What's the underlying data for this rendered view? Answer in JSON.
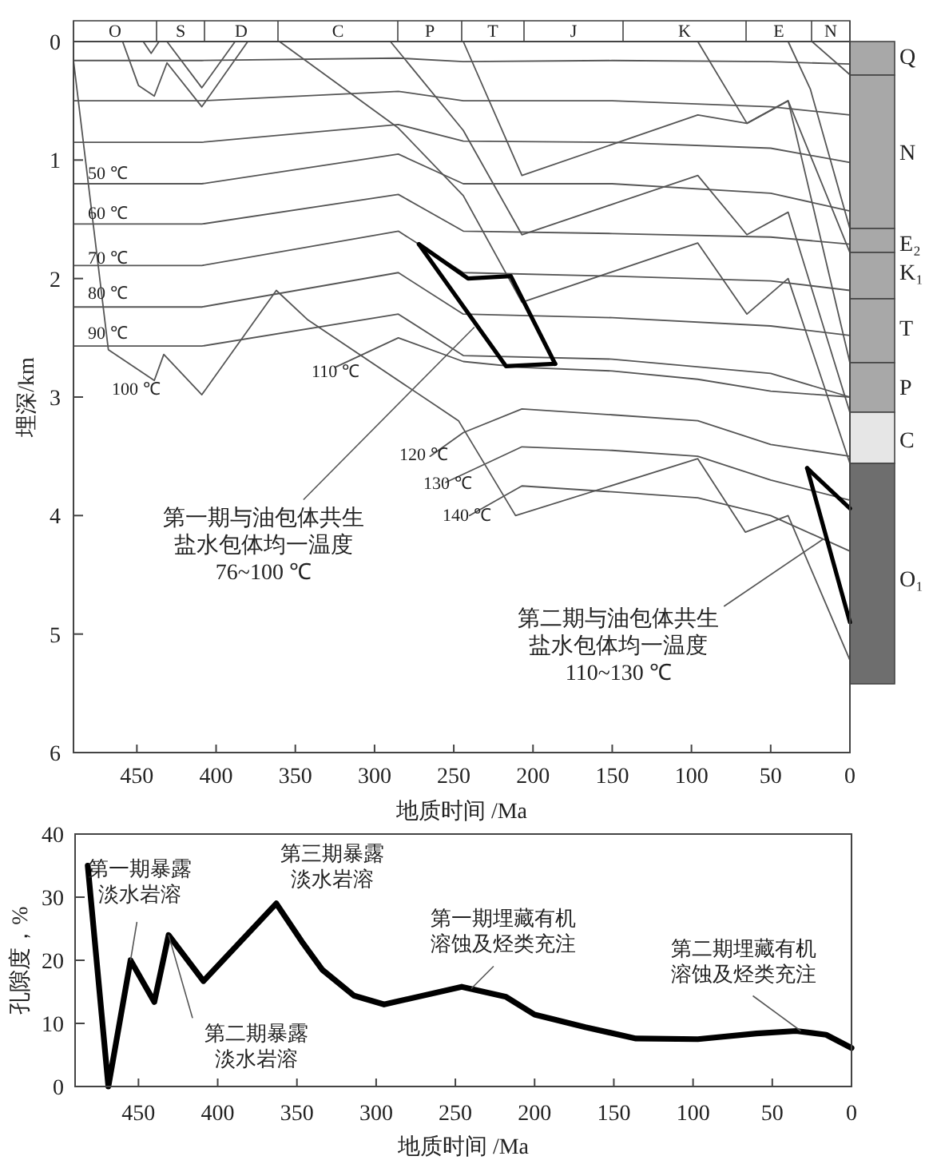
{
  "chart_data": [
    {
      "type": "line",
      "xlabel": "地质时间 /Ma",
      "ylabel": "埋深/km",
      "xlim": [
        490,
        0
      ],
      "ylim": [
        6,
        0
      ],
      "xticks": [
        450,
        400,
        350,
        300,
        250,
        200,
        150,
        100,
        50,
        0
      ],
      "yticks": [
        0,
        1,
        2,
        3,
        4,
        5,
        6
      ],
      "series": [
        {
          "color": "#555555",
          "x": [
            490,
            409,
            285,
            244,
            150,
            50,
            0
          ],
          "values": [
            0.16,
            0.16,
            0.14,
            0.17,
            0.16,
            0.17,
            0.19
          ]
        },
        {
          "color": "#555555",
          "x": [
            490,
            409,
            285,
            244,
            150,
            50,
            0
          ],
          "values": [
            0.5,
            0.5,
            0.42,
            0.5,
            0.5,
            0.55,
            0.62
          ]
        },
        {
          "color": "#555555",
          "x": [
            490,
            409,
            285,
            244,
            150,
            50,
            0
          ],
          "values": [
            0.85,
            0.85,
            0.7,
            0.84,
            0.85,
            0.9,
            1.02
          ]
        },
        {
          "color": "#555555",
          "x": [
            490,
            409,
            285,
            244,
            150,
            50,
            0
          ],
          "values": [
            1.2,
            1.2,
            0.95,
            1.2,
            1.2,
            1.28,
            1.43
          ]
        },
        {
          "color": "#555555",
          "x": [
            490,
            409,
            285,
            244,
            150,
            50,
            0
          ],
          "values": [
            1.54,
            1.54,
            1.29,
            1.6,
            1.62,
            1.65,
            1.71
          ]
        },
        {
          "color": "#555555",
          "x": [
            490,
            409,
            285,
            244,
            150,
            50,
            0
          ],
          "values": [
            1.89,
            1.89,
            1.6,
            1.95,
            1.98,
            2.02,
            2.1
          ]
        },
        {
          "color": "#555555",
          "x": [
            490,
            409,
            285,
            244,
            150,
            50,
            0
          ],
          "values": [
            2.24,
            2.24,
            1.95,
            2.3,
            2.33,
            2.4,
            2.48
          ]
        },
        {
          "color": "#555555",
          "x": [
            490,
            409,
            285,
            244,
            150,
            50,
            0
          ],
          "values": [
            2.57,
            2.57,
            2.3,
            2.65,
            2.68,
            2.8,
            3.0
          ]
        },
        {
          "color": "#555555",
          "x": [
            325,
            285,
            244,
            207,
            150,
            96,
            50,
            0
          ],
          "values": [
            2.75,
            2.5,
            2.7,
            2.75,
            2.78,
            2.85,
            2.95,
            3.0
          ]
        },
        {
          "color": "#555555",
          "x": [
            265,
            244,
            207,
            150,
            96,
            50,
            0
          ],
          "values": [
            3.5,
            3.3,
            3.1,
            3.15,
            3.2,
            3.4,
            3.5
          ]
        },
        {
          "color": "#555555",
          "x": [
            255,
            207,
            150,
            96,
            50,
            0
          ],
          "values": [
            3.72,
            3.42,
            3.45,
            3.5,
            3.7,
            3.87
          ]
        },
        {
          "color": "#555555",
          "x": [
            240,
            207,
            150,
            96,
            50,
            0
          ],
          "values": [
            4.0,
            3.75,
            3.8,
            3.85,
            4.0,
            4.3
          ]
        },
        {
          "color": "#555555",
          "x": [
            490,
            468,
            439,
            433,
            409,
            362,
            342,
            247,
            211,
            96,
            66,
            39,
            0
          ],
          "values": [
            0.16,
            2.6,
            2.86,
            2.64,
            2.98,
            2.1,
            2.35,
            3.2,
            4.0,
            3.52,
            4.14,
            4.0,
            5.22
          ]
        },
        {
          "color": "#555555",
          "x": [
            459,
            449,
            439,
            431,
            409,
            380
          ],
          "values": [
            0,
            0.37,
            0.46,
            0.18,
            0.55,
            0
          ]
        },
        {
          "color": "#555555",
          "x": [
            431,
            409,
            388
          ],
          "values": [
            0,
            0.39,
            0
          ]
        },
        {
          "color": "#555555",
          "x": [
            446,
            441,
            436
          ],
          "values": [
            0,
            0.1,
            0
          ]
        },
        {
          "color": "#555555",
          "x": [
            360,
            285,
            244,
            207,
            96,
            65,
            39,
            0
          ],
          "values": [
            0,
            0.73,
            1.3,
            2.2,
            1.7,
            2.3,
            2.0,
            3.56
          ]
        },
        {
          "color": "#555555",
          "x": [
            290,
            244,
            207,
            96,
            65,
            39,
            0
          ],
          "values": [
            0,
            0.75,
            1.63,
            1.13,
            1.63,
            1.44,
            3.13
          ]
        },
        {
          "color": "#555555",
          "x": [
            244,
            207,
            96,
            65,
            39,
            0
          ],
          "values": [
            0,
            1.13,
            0.62,
            0.69,
            0.5,
            2.71
          ]
        },
        {
          "color": "#555555",
          "x": [
            96,
            65,
            39,
            0
          ],
          "values": [
            0,
            0.69,
            0.5,
            1.78
          ]
        },
        {
          "color": "#555555",
          "x": [
            39,
            25,
            0
          ],
          "values": [
            0,
            0.4,
            1.58
          ]
        },
        {
          "color": "#555555",
          "x": [
            24,
            0
          ],
          "values": [
            0,
            0.28
          ]
        },
        {
          "color": "#000000",
          "x": [
            272,
            241,
            214,
            186
          ],
          "values": [
            1.71,
            2.0,
            1.98,
            2.72
          ]
        },
        {
          "color": "#000000",
          "x": [
            272,
            217,
            186
          ],
          "values": [
            1.71,
            2.74,
            2.72
          ]
        },
        {
          "color": "#000000",
          "x": [
            27,
            0
          ],
          "values": [
            3.6,
            3.94
          ]
        },
        {
          "color": "#000000",
          "x": [
            27,
            0
          ],
          "values": [
            3.6,
            4.9
          ]
        }
      ],
      "annotations": [
        "50 ℃",
        "60 ℃",
        "70 ℃",
        "80 ℃",
        "90 ℃",
        "100 ℃",
        "110 ℃",
        "120 ℃",
        "130 ℃",
        "140 ℃",
        {
          "text": "第一期与油包体共生盐水包体均一温度\n76~100 ℃",
          "x": 237,
          "y": 2.41
        },
        {
          "text": "第二期与油包体共生盐水包体均一温度\n110~130 ℃",
          "x": 17,
          "y": 4.2
        },
        "O",
        "S",
        "D",
        "C",
        "P",
        "T",
        "J",
        "K",
        "E",
        "N",
        "Q",
        "N",
        "E₂",
        "K₁",
        "T",
        "P",
        "C",
        "O₁"
      ]
    },
    {
      "type": "line",
      "xlabel": "地质时间 /Ma",
      "ylabel": "孔隙度，%",
      "xlim": [
        490,
        0
      ],
      "ylim": [
        0,
        40
      ],
      "xticks": [
        450,
        400,
        350,
        300,
        250,
        200,
        150,
        100,
        50,
        0
      ],
      "yticks": [
        0,
        10,
        20,
        30,
        40
      ],
      "series": [
        {
          "color": "#000000",
          "x": [
            482,
            469,
            455,
            440,
            431,
            409,
            363,
            347,
            334,
            314,
            295,
            246,
            218,
            200,
            168,
            136,
            97,
            60,
            35,
            16,
            0
          ],
          "values": [
            35,
            0,
            20,
            13.4,
            24,
            16.7,
            29,
            23,
            18.5,
            14.4,
            13,
            15.8,
            14.2,
            11.4,
            9.4,
            7.6,
            7.5,
            8.4,
            8.8,
            8.2,
            6.1
          ]
        }
      ],
      "annotations": [
        {
          "text": "第一期暴露淡水岩溶",
          "x": 455,
          "y": 20
        },
        {
          "text": "第二期暴露淡水岩溶",
          "x": 431,
          "y": 24
        },
        {
          "text": "第三期暴露淡水岩溶",
          "x": 363,
          "y": 29
        },
        {
          "text": "第一期埋藏有机溶蚀及烃类充注",
          "x": 240,
          "y": 15.5
        },
        {
          "text": "第二期埋藏有机溶蚀及烃类充注",
          "x": 32,
          "y": 8.8
        }
      ]
    }
  ]
}
